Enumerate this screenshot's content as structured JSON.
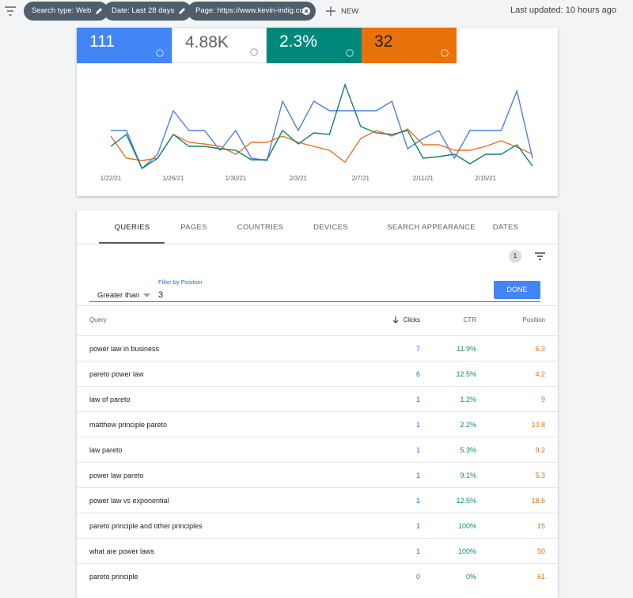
{
  "top_bar": {
    "chips": [
      "Search type: Web",
      "Date: Last 28 days",
      "Page: https://www.kevin-indig.co..."
    ],
    "new_button": "NEW",
    "last_updated": "Last updated: 10 hours ago"
  },
  "metrics": [
    "111",
    "4.88K",
    "2.3%",
    "32"
  ],
  "chart_data": {
    "type": "line",
    "x": [
      "1/22/21",
      null,
      null,
      null,
      "1/26/21",
      null,
      null,
      null,
      "1/30/21",
      null,
      null,
      null,
      "2/3/21",
      null,
      null,
      null,
      "2/7/21",
      null,
      null,
      null,
      "2/11/21",
      null,
      null,
      null,
      "2/15/21",
      null,
      null,
      null
    ],
    "series": [
      {
        "color": "#4a80e8",
        "values": [
          50,
          50,
          2,
          20,
          75,
          50,
          50,
          25,
          50,
          15,
          12,
          87,
          50,
          87,
          75,
          75,
          75,
          75,
          87,
          27,
          40,
          50,
          15,
          50,
          50,
          50,
          100,
          15
        ]
      },
      {
        "color": "#e8712a",
        "values": [
          43,
          15,
          12,
          15,
          45,
          35,
          33,
          30,
          20,
          35,
          35,
          43,
          35,
          30,
          25,
          10,
          40,
          50,
          43,
          52,
          32,
          32,
          25,
          25,
          30,
          37,
          29,
          20
        ]
      },
      {
        "color": "#12806a",
        "values": [
          30,
          45,
          2,
          15,
          45,
          30,
          30,
          27,
          25,
          13,
          13,
          50,
          33,
          47,
          45,
          108,
          55,
          47,
          45,
          50,
          15,
          17,
          20,
          8,
          20,
          20,
          32,
          5
        ]
      }
    ],
    "ylim": [
      0,
      120
    ]
  },
  "tabs": [
    "QUERIES",
    "PAGES",
    "COUNTRIES",
    "DEVICES",
    "SEARCH APPEARANCE",
    "DATES"
  ],
  "filter": {
    "badge": "1",
    "label": "Filter by Position",
    "operator": "Greater than",
    "value": "3",
    "button": "DONE"
  },
  "table": {
    "headers": [
      "Query",
      "Clicks",
      "CTR",
      "Position"
    ],
    "rows": [
      [
        "power law in business",
        "7",
        "11.9%",
        "6.3"
      ],
      [
        "pareto power law",
        "6",
        "12.5%",
        "4.2"
      ],
      [
        "law of pareto",
        "1",
        "1.2%",
        "9"
      ],
      [
        "matthew principle pareto",
        "1",
        "2.2%",
        "10.8"
      ],
      [
        "law pareto",
        "1",
        "5.3%",
        "9.2"
      ],
      [
        "power law pareto",
        "1",
        "9.1%",
        "5.3"
      ],
      [
        "power law vs exponential",
        "1",
        "12.5%",
        "18.6"
      ],
      [
        "pareto principle and other principles",
        "1",
        "100%",
        "15"
      ],
      [
        "what are power laws",
        "1",
        "100%",
        "50"
      ],
      [
        "pareto principle",
        "0",
        "0%",
        "61"
      ]
    ]
  }
}
